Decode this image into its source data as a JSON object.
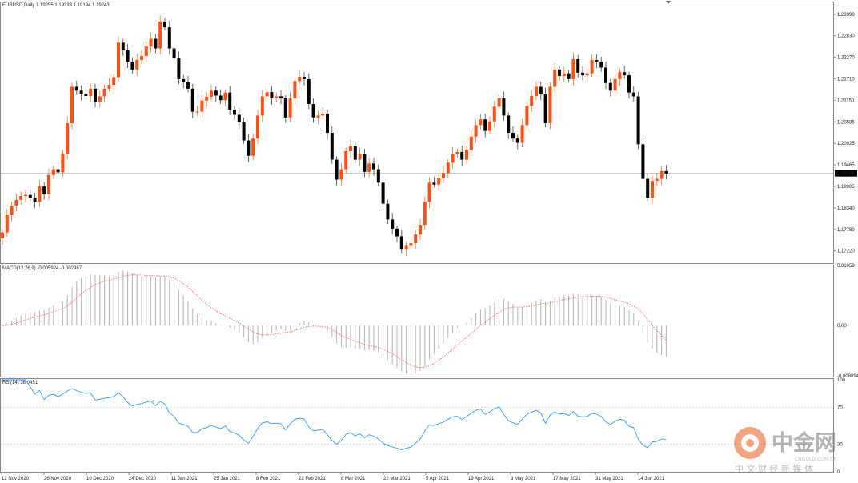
{
  "chart_data": {
    "type": "candlestick",
    "symbol_header": "EURUSD,Daily  1.19255 1.19333 1.19194 1.19243",
    "price_axis": {
      "ticks": [
        "1.23390",
        "1.22830",
        "1.22270",
        "1.21710",
        "1.21150",
        "1.20585",
        "1.20025",
        "1.19465",
        "1.18905",
        "1.18340",
        "1.17780",
        "1.17220"
      ],
      "range": [
        1.169,
        1.237
      ],
      "current_price_label": "1.19243",
      "current_price": 1.19243
    },
    "date_ticks": [
      "12 Nov 2020",
      "26 Nov 2020",
      "10 Dec 2020",
      "24 Dec 2020",
      "11 Jan 2021",
      "25 Jan 2021",
      "8 Feb 2021",
      "22 Feb 2021",
      "8 Mar 2021",
      "22 Mar 2021",
      "5 Apr 2021",
      "19 Apr 2021",
      "3 May 2021",
      "17 May 2021",
      "31 May 2021",
      "14 Jun 2021"
    ],
    "closes": [
      1.177,
      1.1815,
      1.184,
      1.1855,
      1.1865,
      1.1868,
      1.186,
      1.185,
      1.189,
      1.187,
      1.192,
      1.1935,
      1.1927,
      1.1976,
      1.2055,
      1.215,
      1.214,
      1.2132,
      1.2126,
      1.2145,
      1.211,
      1.2125,
      1.2145,
      1.2155,
      1.2175,
      1.2265,
      1.2245,
      1.2215,
      1.2195,
      1.222,
      1.223,
      1.2255,
      1.2275,
      1.225,
      1.232,
      1.2305,
      1.225,
      1.2225,
      1.217,
      1.2162,
      1.2145,
      1.2085,
      1.2085,
      1.2114,
      1.2124,
      1.214,
      1.2127,
      1.2115,
      1.2135,
      1.209,
      1.2077,
      1.2058,
      1.201,
      1.197,
      1.2015,
      1.2075,
      1.2125,
      1.2136,
      1.212,
      1.2125,
      1.212,
      1.207,
      1.212,
      1.2165,
      1.2176,
      1.217,
      1.2105,
      1.207,
      1.2075,
      1.208,
      1.203,
      1.196,
      1.1908,
      1.1935,
      1.1982,
      1.1995,
      1.196,
      1.1975,
      1.1928,
      1.195,
      1.1935,
      1.19,
      1.1845,
      1.1804,
      1.178,
      1.176,
      1.1725,
      1.1735,
      1.1742,
      1.1765,
      1.179,
      1.185,
      1.19,
      1.1895,
      1.1912,
      1.1925,
      1.1952,
      1.1975,
      1.198,
      1.196,
      1.1985,
      1.202,
      1.205,
      1.2065,
      1.2035,
      1.206,
      1.2098,
      1.212,
      1.2075,
      1.203,
      1.2015,
      1.2004,
      1.205,
      1.21,
      1.2126,
      1.215,
      1.2132,
      1.2055,
      1.215,
      1.2195,
      1.2178,
      1.2185,
      1.217,
      1.2222,
      1.2187,
      1.218,
      1.2185,
      1.222,
      1.2215,
      1.22,
      1.216,
      1.214,
      1.217,
      1.2188,
      1.218,
      1.2135,
      1.2125,
      1.2,
      1.191,
      1.186,
      1.1905,
      1.191,
      1.193,
      1.1924
    ],
    "macd": {
      "label": "MACD(12,26,9) -0.005924 -0.002987",
      "ticks": [
        "0.01058",
        "0.00",
        "-0.008894"
      ],
      "range": [
        -0.009,
        0.0106
      ]
    },
    "rsi": {
      "label": "RSI(14) 36.0451",
      "ticks": [
        "100",
        "70",
        "30",
        "0"
      ],
      "range": [
        0,
        100
      ]
    },
    "watermark": {
      "title": "中金网",
      "url": "CNGOLD.COM.CN",
      "tagline": "中 文 财 经 新 媒 体"
    },
    "colors": {
      "bull": "#ff4f12",
      "bear": "#000000",
      "macd_hist": "#b4b4b4",
      "macd_signal": "#ff5050",
      "rsi_line": "#3399ff"
    }
  }
}
